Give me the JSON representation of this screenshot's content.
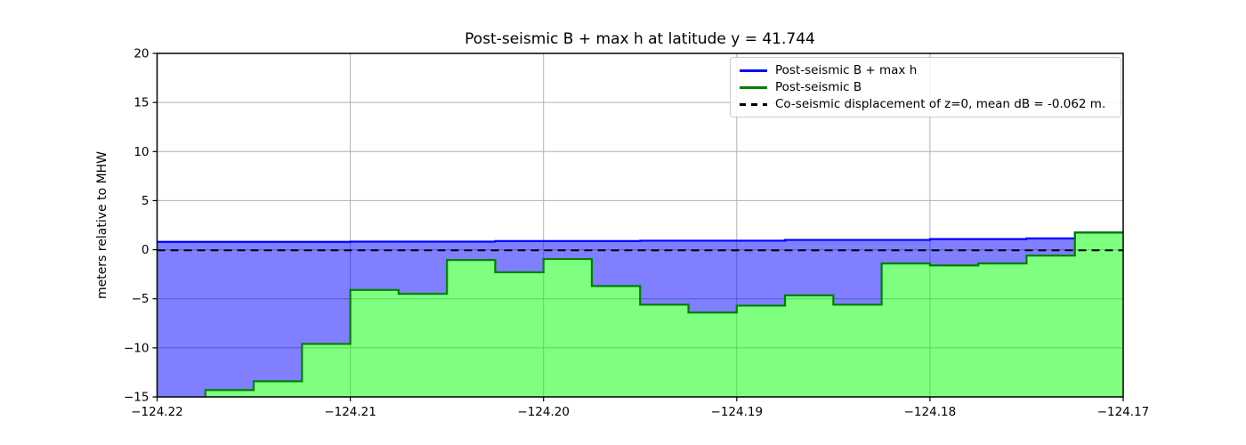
{
  "chart_data": {
    "type": "area",
    "subtype": "step-post",
    "title": "Post-seismic B + max h at latitude y = 41.744",
    "xlabel": "",
    "ylabel": "meters relative to MHW",
    "xlim": [
      -124.22,
      -124.17
    ],
    "ylim": [
      -15,
      20
    ],
    "grid": true,
    "grid_color": "#b0b0b0",
    "legend_position": "upper right",
    "x_tick_values": [
      -124.22,
      -124.21,
      -124.2,
      -124.19,
      -124.18,
      -124.17
    ],
    "x_tick_labels": [
      "−124.22",
      "−124.21",
      "−124.20",
      "−124.19",
      "−124.18",
      "−124.17"
    ],
    "y_tick_values": [
      20,
      15,
      10,
      5,
      0,
      -5,
      -10,
      -15
    ],
    "y_tick_labels": [
      "20",
      "15",
      "10",
      "5",
      "0",
      "−5",
      "−10",
      "−15"
    ],
    "bin_edges": [
      -124.22,
      -124.2175,
      -124.215,
      -124.2125,
      -124.21,
      -124.2075,
      -124.205,
      -124.2025,
      -124.2,
      -124.1975,
      -124.195,
      -124.1925,
      -124.19,
      -124.1875,
      -124.185,
      -124.1825,
      -124.18,
      -124.1775,
      -124.175,
      -124.1725,
      -124.17
    ],
    "series": [
      {
        "name": "Post-seismic B + max h",
        "color": "#0000ff",
        "fill_color": "rgba(0,0,255,0.5)",
        "line_style": "solid",
        "values": [
          0.8,
          0.8,
          0.8,
          0.8,
          0.82,
          0.82,
          0.82,
          0.88,
          0.88,
          0.88,
          0.92,
          0.92,
          0.92,
          1.0,
          1.0,
          1.0,
          1.08,
          1.08,
          1.15,
          1.75
        ]
      },
      {
        "name": "Post-seismic B",
        "color": "#008000",
        "fill_color": "rgba(0,255,0,0.5)",
        "line_style": "solid",
        "values": [
          -15.6,
          -14.3,
          -13.4,
          -9.6,
          -4.1,
          -4.5,
          -1.05,
          -2.3,
          -0.95,
          -3.7,
          -5.6,
          -6.4,
          -5.7,
          -4.65,
          -5.6,
          -1.4,
          -1.6,
          -1.4,
          -0.6,
          1.75
        ]
      },
      {
        "name": "Co-seismic displacement of z=0, mean dB = -0.062 m.",
        "color": "#000000",
        "line_style": "dashed",
        "constant_value": -0.062
      }
    ]
  }
}
